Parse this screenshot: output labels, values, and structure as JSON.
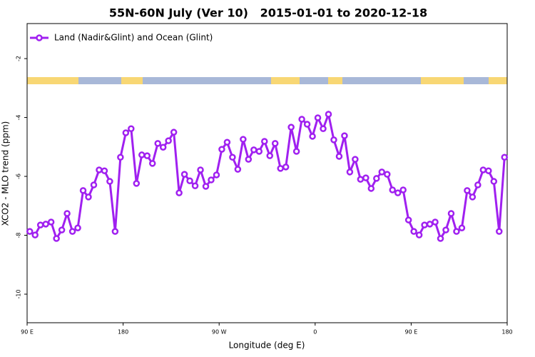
{
  "chart_data": {
    "type": "line",
    "title": "55N-60N July (Ver 10)   2015-01-01 to 2020-12-18",
    "xlabel": "Longitude (deg E)",
    "ylabel": "XCO2 - MLO trend (ppm)",
    "xlim": [
      90,
      540
    ],
    "xticks": [
      {
        "value": 90,
        "label": "90 E"
      },
      180,
      {
        "value": 270,
        "label": "90 W"
      },
      {
        "value": 360,
        "label": "0"
      },
      {
        "value": 450,
        "label": "90 E"
      },
      {
        "value": 540,
        "label": "180"
      }
    ],
    "ylim": [
      -10.97,
      -0.81
    ],
    "yticks": [
      -2,
      -4,
      -6,
      -8,
      -10
    ],
    "legend": "top-left",
    "x": [
      92.5,
      97.5,
      102.5,
      107.5,
      112.5,
      117.5,
      122.5,
      127.5,
      132.5,
      137.5,
      142.5,
      147.5,
      152.5,
      157.5,
      162.5,
      167.5,
      172.5,
      177.5,
      182.5,
      187.5,
      192.5,
      197.5,
      202.5,
      207.5,
      212.5,
      217.5,
      222.5,
      227.5,
      232.5,
      237.5,
      242.5,
      247.5,
      252.5,
      257.5,
      262.5,
      267.5,
      272.5,
      277.5,
      282.5,
      287.5,
      292.5,
      297.5,
      302.5,
      307.5,
      312.5,
      317.5,
      322.5,
      327.5,
      332.5,
      337.5,
      342.5,
      347.5,
      352.5,
      357.5,
      362.5,
      367.5,
      372.5,
      377.5,
      382.5,
      387.5,
      392.5,
      397.5,
      402.5,
      407.5,
      412.5,
      417.5,
      422.5,
      427.5,
      432.5,
      437.5,
      442.5,
      447.5,
      452.5,
      457.5,
      462.5,
      467.5,
      472.5,
      477.5,
      482.5,
      487.5,
      492.5,
      497.5,
      502.5,
      507.5,
      512.5,
      517.5,
      522.5,
      527.5,
      532.5,
      537.5
    ],
    "series": [
      {
        "name": "Land (Nadir&Glint) and Ocean (Glint)",
        "color": "#a020f0",
        "values": [
          -7.87,
          -7.99,
          -7.65,
          -7.62,
          -7.55,
          -8.11,
          -7.82,
          -7.26,
          -7.87,
          -7.75,
          -6.48,
          -6.7,
          -6.29,
          -5.78,
          -5.81,
          -6.17,
          -7.87,
          -5.35,
          -4.52,
          -4.38,
          -6.24,
          -5.27,
          -5.3,
          -5.56,
          -4.88,
          -5.01,
          -4.79,
          -4.5,
          -6.56,
          -5.93,
          -6.15,
          -6.32,
          -5.78,
          -6.34,
          -6.12,
          -5.95,
          -5.08,
          -4.84,
          -5.35,
          -5.76,
          -4.74,
          -5.42,
          -5.1,
          -5.15,
          -4.81,
          -5.3,
          -4.88,
          -5.73,
          -5.68,
          -4.33,
          -5.15,
          -4.06,
          -4.23,
          -4.64,
          -4.01,
          -4.38,
          -3.89,
          -4.76,
          -5.32,
          -4.62,
          -5.85,
          -5.42,
          -6.1,
          -6.05,
          -6.41,
          -6.07,
          -5.85,
          -5.93,
          -6.46,
          -6.56,
          -6.46,
          -7.48,
          -7.87,
          -7.99,
          -7.65,
          -7.62,
          -7.55,
          -8.11,
          -7.82,
          -7.26,
          -7.87,
          -7.75,
          -6.48,
          -6.7,
          -6.29,
          -5.78,
          -5.81,
          -6.17,
          -7.87,
          -5.35
        ]
      }
    ]
  }
}
